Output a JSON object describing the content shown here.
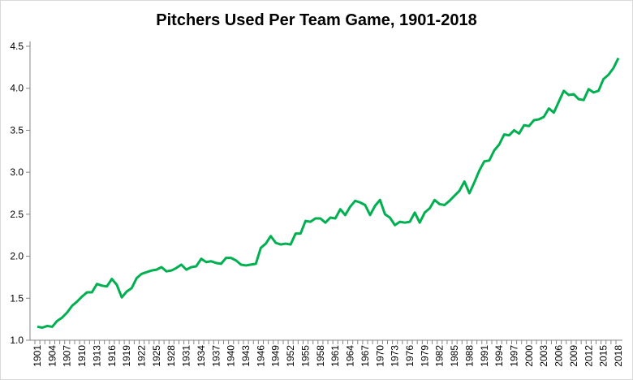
{
  "chart_data": {
    "type": "line",
    "title": "Pitchers Used Per Team Game, 1901-2018",
    "xlabel": "",
    "ylabel": "",
    "ylim": [
      1.0,
      4.5
    ],
    "yticks": [
      "1.0",
      "1.5",
      "2.0",
      "2.5",
      "3.0",
      "3.5",
      "4.0",
      "4.5"
    ],
    "xlim": [
      1901,
      2018
    ],
    "xtick_step": 3,
    "grid": false,
    "legend": "none",
    "line_color": "#00b050",
    "x": [
      1901,
      1902,
      1903,
      1904,
      1905,
      1906,
      1907,
      1908,
      1909,
      1910,
      1911,
      1912,
      1913,
      1914,
      1915,
      1916,
      1917,
      1918,
      1919,
      1920,
      1921,
      1922,
      1923,
      1924,
      1925,
      1926,
      1927,
      1928,
      1929,
      1930,
      1931,
      1932,
      1933,
      1934,
      1935,
      1936,
      1937,
      1938,
      1939,
      1940,
      1941,
      1942,
      1943,
      1944,
      1945,
      1946,
      1947,
      1948,
      1949,
      1950,
      1951,
      1952,
      1953,
      1954,
      1955,
      1956,
      1957,
      1958,
      1959,
      1960,
      1961,
      1962,
      1963,
      1964,
      1965,
      1966,
      1967,
      1968,
      1969,
      1970,
      1971,
      1972,
      1973,
      1974,
      1975,
      1976,
      1977,
      1978,
      1979,
      1980,
      1981,
      1982,
      1983,
      1984,
      1985,
      1986,
      1987,
      1988,
      1989,
      1990,
      1991,
      1992,
      1993,
      1994,
      1995,
      1996,
      1997,
      1998,
      1999,
      2000,
      2001,
      2002,
      2003,
      2004,
      2005,
      2006,
      2007,
      2008,
      2009,
      2010,
      2011,
      2012,
      2013,
      2014,
      2015,
      2016,
      2017,
      2018
    ],
    "values": [
      1.16,
      1.15,
      1.17,
      1.16,
      1.23,
      1.27,
      1.33,
      1.41,
      1.46,
      1.52,
      1.57,
      1.57,
      1.67,
      1.65,
      1.64,
      1.73,
      1.66,
      1.51,
      1.58,
      1.62,
      1.74,
      1.79,
      1.81,
      1.83,
      1.84,
      1.87,
      1.82,
      1.83,
      1.86,
      1.9,
      1.84,
      1.87,
      1.88,
      1.97,
      1.93,
      1.94,
      1.92,
      1.91,
      1.98,
      1.98,
      1.95,
      1.9,
      1.89,
      1.9,
      1.91,
      2.1,
      2.15,
      2.24,
      2.16,
      2.14,
      2.15,
      2.14,
      2.27,
      2.27,
      2.42,
      2.41,
      2.45,
      2.45,
      2.4,
      2.46,
      2.45,
      2.56,
      2.49,
      2.59,
      2.66,
      2.64,
      2.61,
      2.49,
      2.6,
      2.67,
      2.5,
      2.46,
      2.37,
      2.41,
      2.4,
      2.41,
      2.52,
      2.4,
      2.52,
      2.57,
      2.67,
      2.62,
      2.61,
      2.66,
      2.72,
      2.78,
      2.89,
      2.75,
      2.88,
      3.02,
      3.13,
      3.14,
      3.26,
      3.33,
      3.45,
      3.44,
      3.5,
      3.46,
      3.56,
      3.55,
      3.62,
      3.63,
      3.66,
      3.76,
      3.71,
      3.84,
      3.97,
      3.92,
      3.93,
      3.87,
      3.86,
      3.99,
      3.95,
      3.97,
      4.11,
      4.16,
      4.24,
      4.36
    ]
  }
}
